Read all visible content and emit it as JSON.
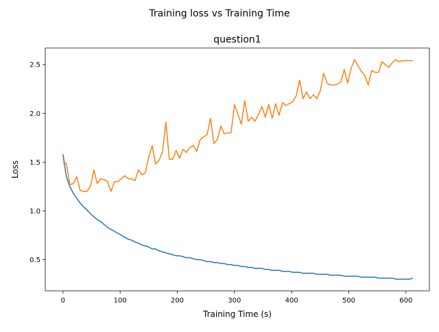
{
  "figure": {
    "suptitle": "Training loss vs Training Time"
  },
  "chart_data": {
    "type": "line",
    "title": "question1",
    "xlabel": "Training Time (s)",
    "ylabel": "Loss",
    "xlim": [
      -31,
      641
    ],
    "ylim": [
      0.18,
      2.67
    ],
    "xticks": [
      0,
      100,
      200,
      300,
      400,
      500,
      600
    ],
    "yticks": [
      0.5,
      1.0,
      1.5,
      2.0,
      2.5
    ],
    "xtick_labels": [
      "0",
      "100",
      "200",
      "300",
      "400",
      "500",
      "600"
    ],
    "ytick_labels": [
      "0.5",
      "1.0",
      "1.5",
      "2.0",
      "2.5"
    ],
    "grid": false,
    "legend": "none",
    "series": [
      {
        "color": "#1f77b4",
        "x": [
          0,
          6,
          12,
          18,
          24,
          30,
          36,
          42,
          48,
          54,
          60,
          66,
          72,
          78,
          84,
          90,
          96,
          102,
          108,
          114,
          120,
          126,
          132,
          138,
          144,
          150,
          156,
          162,
          168,
          174,
          180,
          186,
          192,
          198,
          204,
          210,
          216,
          222,
          228,
          234,
          240,
          246,
          252,
          258,
          264,
          270,
          276,
          282,
          288,
          294,
          300,
          306,
          312,
          318,
          324,
          330,
          336,
          342,
          348,
          354,
          360,
          366,
          372,
          378,
          384,
          390,
          396,
          402,
          408,
          414,
          420,
          426,
          432,
          438,
          444,
          450,
          456,
          462,
          468,
          474,
          480,
          486,
          492,
          498,
          504,
          510,
          516,
          522,
          528,
          534,
          540,
          546,
          552,
          558,
          564,
          570,
          576,
          582,
          588,
          594,
          600,
          606,
          612
        ],
        "values": [
          1.58,
          1.35,
          1.25,
          1.18,
          1.13,
          1.08,
          1.04,
          1.01,
          0.97,
          0.94,
          0.91,
          0.89,
          0.86,
          0.83,
          0.81,
          0.79,
          0.77,
          0.75,
          0.73,
          0.71,
          0.7,
          0.68,
          0.67,
          0.65,
          0.64,
          0.63,
          0.61,
          0.61,
          0.59,
          0.58,
          0.57,
          0.56,
          0.55,
          0.54,
          0.54,
          0.53,
          0.52,
          0.52,
          0.51,
          0.5,
          0.5,
          0.49,
          0.48,
          0.48,
          0.47,
          0.47,
          0.46,
          0.46,
          0.45,
          0.45,
          0.44,
          0.44,
          0.43,
          0.43,
          0.42,
          0.42,
          0.41,
          0.41,
          0.41,
          0.4,
          0.4,
          0.39,
          0.39,
          0.39,
          0.38,
          0.38,
          0.38,
          0.37,
          0.37,
          0.37,
          0.36,
          0.36,
          0.36,
          0.36,
          0.35,
          0.35,
          0.35,
          0.35,
          0.34,
          0.34,
          0.34,
          0.34,
          0.33,
          0.33,
          0.33,
          0.33,
          0.33,
          0.32,
          0.32,
          0.32,
          0.32,
          0.32,
          0.31,
          0.31,
          0.31,
          0.31,
          0.31,
          0.3,
          0.3,
          0.3,
          0.3,
          0.3,
          0.31
        ]
      },
      {
        "color": "#ff7f0e",
        "x": [
          0,
          6,
          12,
          18,
          24,
          30,
          36,
          42,
          48,
          54,
          60,
          66,
          72,
          78,
          84,
          90,
          96,
          102,
          108,
          114,
          120,
          126,
          132,
          138,
          144,
          150,
          156,
          162,
          168,
          174,
          180,
          186,
          192,
          198,
          204,
          210,
          216,
          222,
          228,
          234,
          240,
          246,
          252,
          258,
          264,
          270,
          276,
          282,
          288,
          294,
          300,
          306,
          312,
          318,
          324,
          330,
          336,
          342,
          348,
          354,
          360,
          366,
          372,
          378,
          384,
          390,
          396,
          402,
          408,
          414,
          420,
          426,
          432,
          438,
          444,
          450,
          456,
          462,
          468,
          474,
          480,
          486,
          492,
          498,
          504,
          510,
          516,
          522,
          528,
          534,
          540,
          546,
          552,
          558,
          564,
          570,
          576,
          582,
          588,
          594,
          600,
          606,
          612
        ],
        "values": [
          1.49,
          1.49,
          1.27,
          1.28,
          1.35,
          1.21,
          1.2,
          1.2,
          1.25,
          1.42,
          1.28,
          1.33,
          1.32,
          1.3,
          1.2,
          1.3,
          1.3,
          1.33,
          1.36,
          1.33,
          1.33,
          1.31,
          1.42,
          1.37,
          1.39,
          1.55,
          1.67,
          1.48,
          1.52,
          1.6,
          1.91,
          1.53,
          1.53,
          1.62,
          1.54,
          1.63,
          1.6,
          1.65,
          1.67,
          1.61,
          1.73,
          1.76,
          1.78,
          1.95,
          1.69,
          1.73,
          1.87,
          1.79,
          1.8,
          1.8,
          2.09,
          1.99,
          1.89,
          2.13,
          1.92,
          1.96,
          1.92,
          1.99,
          2.07,
          1.96,
          2.09,
          1.95,
          2.1,
          1.98,
          2.11,
          2.08,
          2.1,
          2.12,
          2.18,
          2.34,
          2.15,
          2.22,
          2.15,
          2.19,
          2.15,
          2.23,
          2.41,
          2.31,
          2.29,
          2.29,
          2.3,
          2.32,
          2.45,
          2.31,
          2.46,
          2.55,
          2.49,
          2.43,
          2.39,
          2.29,
          2.44,
          2.42,
          2.42,
          2.53,
          2.5,
          2.47,
          2.52,
          2.55,
          2.53,
          2.54,
          2.54,
          2.54,
          2.54
        ]
      }
    ]
  }
}
